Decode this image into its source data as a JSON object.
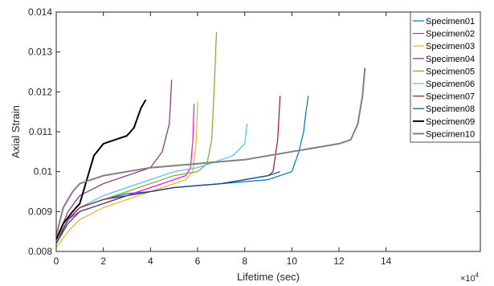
{
  "chart_data": {
    "type": "line",
    "xlabel": "Lifetime (sec)",
    "ylabel": "Axial Strain",
    "x_exponent_label": "×10",
    "x_exponent_power": "4",
    "xlim": [
      0,
      18
    ],
    "ylim": [
      0.008,
      0.014
    ],
    "x_ticks": [
      "0",
      "2",
      "4",
      "6",
      "8",
      "10",
      "12",
      "14"
    ],
    "x_tick_values": [
      0,
      2,
      4,
      6,
      8,
      10,
      12,
      14
    ],
    "y_ticks": [
      "0.008",
      "0.009",
      "0.01",
      "0.011",
      "0.012",
      "0.013",
      "0.014"
    ],
    "y_tick_values": [
      0.008,
      0.009,
      0.01,
      0.011,
      0.012,
      0.013,
      0.014
    ],
    "x_units_note": "x values in units of 10^4 sec",
    "legend_position": "top-right",
    "grid": false,
    "series": [
      {
        "name": "Specimen01",
        "color": "#0072BD",
        "x": [
          0,
          0.5,
          1,
          2,
          3,
          4,
          5,
          6,
          7,
          8,
          9,
          9.5,
          10,
          10.3,
          10.5,
          10.6,
          10.7
        ],
        "y": [
          0.0082,
          0.0088,
          0.0091,
          0.0093,
          0.00945,
          0.0095,
          0.0096,
          0.00965,
          0.0097,
          0.00975,
          0.0098,
          0.0099,
          0.01,
          0.0105,
          0.011,
          0.0115,
          0.0119
        ]
      },
      {
        "name": "Specimen02",
        "color": "#FF00FF",
        "x": [
          0,
          0.5,
          1,
          2,
          3,
          4,
          5,
          5.5,
          5.7,
          5.8,
          5.85
        ],
        "y": [
          0.0082,
          0.0088,
          0.009,
          0.0092,
          0.0094,
          0.0096,
          0.0098,
          0.0099,
          0.0101,
          0.0108,
          0.0117
        ]
      },
      {
        "name": "Specimen03",
        "color": "#EDB120",
        "x": [
          0,
          0.5,
          1,
          2,
          3,
          4,
          5,
          5.5,
          5.8,
          5.95,
          6.0
        ],
        "y": [
          0.0081,
          0.0085,
          0.0088,
          0.0091,
          0.0093,
          0.0095,
          0.0097,
          0.0098,
          0.01,
          0.0108,
          0.01175
        ]
      },
      {
        "name": "Specimen04",
        "color": "#7E2F8E",
        "x": [
          0,
          0.5,
          1,
          2,
          3,
          3.5,
          4,
          4.5,
          4.8,
          4.9
        ],
        "y": [
          0.0083,
          0.009,
          0.0094,
          0.0097,
          0.0099,
          0.01,
          0.0101,
          0.0105,
          0.0112,
          0.0123
        ]
      },
      {
        "name": "Specimen05",
        "color": "#77AC30",
        "x": [
          0,
          0.5,
          1,
          2,
          3,
          4,
          5,
          6,
          6.4,
          6.6,
          6.7,
          6.8
        ],
        "y": [
          0.0083,
          0.0088,
          0.0091,
          0.0093,
          0.0095,
          0.0097,
          0.0099,
          0.01,
          0.0102,
          0.0108,
          0.012,
          0.0135
        ]
      },
      {
        "name": "Specimen06",
        "color": "#4DBEEE",
        "x": [
          0,
          0.5,
          1,
          2,
          3,
          4,
          5,
          6,
          7,
          7.5,
          8,
          8.1
        ],
        "y": [
          0.0082,
          0.0088,
          0.0091,
          0.0094,
          0.0096,
          0.0098,
          0.01,
          0.0101,
          0.0103,
          0.0104,
          0.0107,
          0.0112
        ]
      },
      {
        "name": "Specimen07",
        "color": "#A2142F",
        "x": [
          0,
          0.5,
          1,
          2,
          3,
          4,
          5,
          6,
          7,
          8,
          9,
          9.2,
          9.4,
          9.5
        ],
        "y": [
          0.0082,
          0.0088,
          0.0091,
          0.0093,
          0.0094,
          0.0095,
          0.0096,
          0.00965,
          0.0097,
          0.0098,
          0.0099,
          0.01,
          0.0108,
          0.0119
        ]
      },
      {
        "name": "Specimen08",
        "color": "#0E4C8A",
        "x": [
          0,
          0.5,
          1,
          2,
          3,
          4,
          5,
          6,
          7,
          8,
          9,
          9.5
        ],
        "y": [
          0.0082,
          0.0087,
          0.009,
          0.0092,
          0.0094,
          0.0095,
          0.0096,
          0.00965,
          0.0097,
          0.0098,
          0.0099,
          0.01
        ]
      },
      {
        "name": "Specimen09",
        "color": "#000000",
        "x": [
          0,
          0.3,
          0.7,
          1,
          1.3,
          1.6,
          2,
          2.5,
          3,
          3.3,
          3.6,
          3.8
        ],
        "y": [
          0.0083,
          0.0087,
          0.009,
          0.0092,
          0.0098,
          0.0104,
          0.0107,
          0.0108,
          0.0109,
          0.0111,
          0.0116,
          0.0118
        ]
      },
      {
        "name": "Specimen10",
        "color": "#808080",
        "x": [
          0,
          0.3,
          0.7,
          1,
          2,
          3,
          4,
          6,
          8,
          10,
          12,
          12.5,
          12.8,
          13.0,
          13.1
        ],
        "y": [
          0.0084,
          0.0091,
          0.0095,
          0.0097,
          0.0099,
          0.01,
          0.0101,
          0.0102,
          0.0103,
          0.0105,
          0.0107,
          0.0108,
          0.0112,
          0.0119,
          0.0126
        ]
      }
    ]
  }
}
